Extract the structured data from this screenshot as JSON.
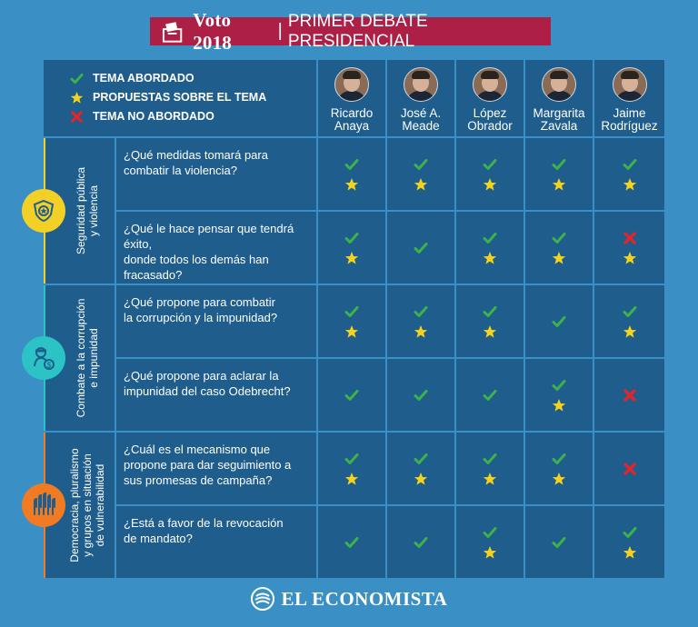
{
  "header": {
    "brand": "Voto 2018",
    "separator": "|",
    "subtitle": "PRIMER DEBATE PRESIDENCIAL",
    "color": "#ae1f45"
  },
  "legend": [
    {
      "icon": "check-icon",
      "label": "TEMA ABORDADO"
    },
    {
      "icon": "star-icon",
      "label": "PROPUESTAS SOBRE EL TEMA"
    },
    {
      "icon": "cross-icon",
      "label": "TEMA NO ABORDADO"
    }
  ],
  "candidates": [
    {
      "first": "Ricardo",
      "last": "Anaya"
    },
    {
      "first": "José A.",
      "last": "Meade"
    },
    {
      "first": "López",
      "last": "Obrador"
    },
    {
      "first": "Margarita",
      "last": "Zavala"
    },
    {
      "first": "Jaime",
      "last": "Rodríguez"
    }
  ],
  "categories": [
    {
      "label_line1": "Seguridad pública",
      "label_line2": "y violencia",
      "label_line3": "",
      "icon": "police-badge-icon",
      "color": "#f2d026",
      "bar_color": "#f2d026"
    },
    {
      "label_line1": "Combate a la corrupción",
      "label_line2": "e impunidad",
      "label_line3": "",
      "icon": "money-thief-icon",
      "color": "#2bc3c6",
      "bar_color": "#2bc3c6"
    },
    {
      "label_line1": "Democracia, pluralismo",
      "label_line2": "y grupos en situación",
      "label_line3": "de vulnerabilidad",
      "icon": "raised-hands-icon",
      "color": "#f07b22",
      "bar_color": "#f07b22"
    }
  ],
  "questions": [
    {
      "text_lines": [
        "¿Qué medidas tomará para",
        "combatir la violencia?"
      ],
      "marks": [
        [
          "check",
          "star"
        ],
        [
          "check",
          "star"
        ],
        [
          "check",
          "star"
        ],
        [
          "check",
          "star"
        ],
        [
          "check",
          "star"
        ]
      ]
    },
    {
      "text_lines": [
        "¿Qué le hace pensar que tendrá éxito,",
        "donde todos los demás han fracasado?"
      ],
      "marks": [
        [
          "check",
          "star"
        ],
        [
          "check"
        ],
        [
          "check",
          "star"
        ],
        [
          "check",
          "star"
        ],
        [
          "cross",
          "star"
        ]
      ]
    },
    {
      "text_lines": [
        "¿Qué propone para combatir",
        "la corrupción y la impunidad?"
      ],
      "marks": [
        [
          "check",
          "star"
        ],
        [
          "check",
          "star"
        ],
        [
          "check",
          "star"
        ],
        [
          "check"
        ],
        [
          "check",
          "star"
        ]
      ]
    },
    {
      "text_lines": [
        "¿Qué propone para aclarar la",
        "impunidad del caso Odebrecht?"
      ],
      "marks": [
        [
          "check"
        ],
        [
          "check"
        ],
        [
          "check"
        ],
        [
          "check",
          "star"
        ],
        [
          "cross"
        ]
      ]
    },
    {
      "text_lines": [
        "¿Cuál es el mecanismo que",
        "propone para dar seguimiento a",
        "sus promesas de campaña?"
      ],
      "marks": [
        [
          "check",
          "star"
        ],
        [
          "check",
          "star"
        ],
        [
          "check",
          "star"
        ],
        [
          "check",
          "star"
        ],
        [
          "cross"
        ]
      ]
    },
    {
      "text_lines": [
        "¿Está a favor de la revocación",
        "de mandato?"
      ],
      "marks": [
        [
          "check"
        ],
        [
          "check"
        ],
        [
          "check",
          "star"
        ],
        [
          "check"
        ],
        [
          "check",
          "star"
        ]
      ]
    }
  ],
  "colors": {
    "check": "#3db24b",
    "star": "#f5d31c",
    "cross": "#e0262b",
    "cell": "#1e5d8c",
    "background": "#3a8fc4"
  },
  "footer": {
    "brand": "EL ECONOMISTA"
  }
}
